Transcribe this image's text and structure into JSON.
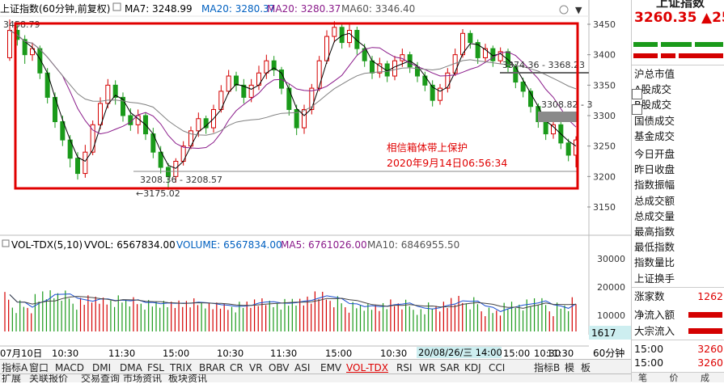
{
  "header": {
    "index_name": "上证指数(60分钟,前复权)",
    "ma7": "MA7: 3248.99",
    "ma20a": "MA20: 3280.37",
    "ma20b": "MA20: 3280.37",
    "ma60": "MA60: 3346.40",
    "arrow_down": "▼"
  },
  "price_axis": [
    "3450",
    "3400",
    "3350",
    "3300",
    "3250",
    "3200",
    "3150"
  ],
  "volume_axis": [
    "30000",
    "20000",
    "10000"
  ],
  "price_annotations": {
    "high_label": "3458.79",
    "low_label": "←3175.02",
    "range_left": "3208.36 - 3208.57",
    "range_top": "3374.36 - 3368.23",
    "range_mid": "3308.82 - 3"
  },
  "overlay": {
    "line1": "相信箱体带上保护",
    "line2": "2020年9月14日06:56:34"
  },
  "volume_header": {
    "name": "VOL-TDX(5,10)",
    "vvol": "VVOL: 6567834.00",
    "volume": "VOLUME: 6567834.00",
    "ma5": "MA5: 6761026.00",
    "ma10": "MA10: 6846955.50"
  },
  "volume_badge": "1617",
  "time_axis": {
    "labels": [
      "07月10日",
      "10:30",
      "11:30",
      "15:00",
      "10:30",
      "11:30",
      "15:00",
      "10:30",
      "11:30",
      "14:00",
      "15:00",
      "10:30",
      "11:30"
    ],
    "cursor_label": "20/08/26/三 14:00",
    "period": "60分钟"
  },
  "tabs": [
    "指标A",
    "窗口",
    "MACD",
    "DMI",
    "DMA",
    "FSL",
    "TRIX",
    "BRAR",
    "CR",
    "VR",
    "OBV",
    "ASI",
    "EMV",
    "VOL-TDX",
    "RSI",
    "WR",
    "SAR",
    "KDJ",
    "CCI",
    "指标B",
    "模",
    "板"
  ],
  "bottom_tabs": [
    "扩展",
    "关联报价",
    "交易查询",
    "市场资讯",
    "板块资讯"
  ],
  "right_panel": {
    "title": "上证指数",
    "price": "3260.35",
    "change": "▲25",
    "labels": [
      "沪总市值",
      "A股成交",
      "B股成交",
      "国债成交",
      "基金成交",
      "今日开盘",
      "昨日收盘",
      "指数振幅",
      "总成交额",
      "总成交量",
      "最高指数",
      "最低指数",
      "指数量比",
      "上证换手"
    ],
    "rise_count_label": "涨家数",
    "rise_count": "1262",
    "inflow_label": "净流入额",
    "big_inflow_label": "大宗流入",
    "ticks": [
      {
        "time": "15:00",
        "value": "3260"
      },
      {
        "time": "15:00",
        "value": "3260"
      }
    ],
    "footer": [
      "笔",
      "价",
      "成"
    ]
  },
  "colors": {
    "up": "#d40000",
    "down": "#1a9a1a",
    "ma_black": "#000000",
    "ma_purple": "#8a1a8a",
    "ma_gray": "#808080",
    "box": "#e00000",
    "overlay_text": "#e00000"
  },
  "chart_data": {
    "type": "candlestick",
    "title": "上证指数(60分钟,前复权)",
    "ylim": [
      3125,
      3475
    ],
    "candles": [
      {
        "o": 3395,
        "c": 3440,
        "h": 3458,
        "l": 3390
      },
      {
        "o": 3440,
        "c": 3425,
        "h": 3450,
        "l": 3415
      },
      {
        "o": 3425,
        "c": 3400,
        "h": 3432,
        "l": 3385
      },
      {
        "o": 3400,
        "c": 3410,
        "h": 3420,
        "l": 3390
      },
      {
        "o": 3410,
        "c": 3370,
        "h": 3415,
        "l": 3360
      },
      {
        "o": 3370,
        "c": 3330,
        "h": 3378,
        "l": 3320
      },
      {
        "o": 3330,
        "c": 3290,
        "h": 3338,
        "l": 3280
      },
      {
        "o": 3290,
        "c": 3260,
        "h": 3300,
        "l": 3250
      },
      {
        "o": 3260,
        "c": 3230,
        "h": 3268,
        "l": 3215
      },
      {
        "o": 3230,
        "c": 3205,
        "h": 3240,
        "l": 3195
      },
      {
        "o": 3205,
        "c": 3240,
        "h": 3252,
        "l": 3198
      },
      {
        "o": 3240,
        "c": 3285,
        "h": 3292,
        "l": 3235
      },
      {
        "o": 3285,
        "c": 3320,
        "h": 3330,
        "l": 3278
      },
      {
        "o": 3320,
        "c": 3350,
        "h": 3360,
        "l": 3312
      },
      {
        "o": 3350,
        "c": 3330,
        "h": 3358,
        "l": 3318
      },
      {
        "o": 3330,
        "c": 3300,
        "h": 3338,
        "l": 3290
      },
      {
        "o": 3300,
        "c": 3285,
        "h": 3312,
        "l": 3275
      },
      {
        "o": 3285,
        "c": 3300,
        "h": 3310,
        "l": 3270
      },
      {
        "o": 3300,
        "c": 3270,
        "h": 3305,
        "l": 3260
      },
      {
        "o": 3270,
        "c": 3240,
        "h": 3280,
        "l": 3230
      },
      {
        "o": 3240,
        "c": 3215,
        "h": 3250,
        "l": 3205
      },
      {
        "o": 3215,
        "c": 3200,
        "h": 3222,
        "l": 3178
      },
      {
        "o": 3200,
        "c": 3225,
        "h": 3230,
        "l": 3190
      },
      {
        "o": 3225,
        "c": 3250,
        "h": 3258,
        "l": 3218
      },
      {
        "o": 3250,
        "c": 3275,
        "h": 3282,
        "l": 3245
      },
      {
        "o": 3275,
        "c": 3295,
        "h": 3305,
        "l": 3265
      },
      {
        "o": 3295,
        "c": 3280,
        "h": 3300,
        "l": 3270
      },
      {
        "o": 3280,
        "c": 3310,
        "h": 3318,
        "l": 3272
      },
      {
        "o": 3310,
        "c": 3340,
        "h": 3350,
        "l": 3305
      },
      {
        "o": 3340,
        "c": 3365,
        "h": 3375,
        "l": 3335
      },
      {
        "o": 3365,
        "c": 3350,
        "h": 3372,
        "l": 3340
      },
      {
        "o": 3350,
        "c": 3330,
        "h": 3360,
        "l": 3320
      },
      {
        "o": 3330,
        "c": 3350,
        "h": 3360,
        "l": 3322
      },
      {
        "o": 3350,
        "c": 3370,
        "h": 3382,
        "l": 3342
      },
      {
        "o": 3370,
        "c": 3390,
        "h": 3400,
        "l": 3360
      },
      {
        "o": 3390,
        "c": 3375,
        "h": 3398,
        "l": 3365
      },
      {
        "o": 3375,
        "c": 3345,
        "h": 3380,
        "l": 3335
      },
      {
        "o": 3345,
        "c": 3310,
        "h": 3352,
        "l": 3300
      },
      {
        "o": 3310,
        "c": 3280,
        "h": 3318,
        "l": 3268
      },
      {
        "o": 3280,
        "c": 3310,
        "h": 3318,
        "l": 3270
      },
      {
        "o": 3310,
        "c": 3345,
        "h": 3352,
        "l": 3302
      },
      {
        "o": 3345,
        "c": 3390,
        "h": 3398,
        "l": 3340
      },
      {
        "o": 3390,
        "c": 3430,
        "h": 3440,
        "l": 3385
      },
      {
        "o": 3430,
        "c": 3445,
        "h": 3455,
        "l": 3420
      },
      {
        "o": 3445,
        "c": 3420,
        "h": 3452,
        "l": 3410
      },
      {
        "o": 3420,
        "c": 3440,
        "h": 3450,
        "l": 3412
      },
      {
        "o": 3440,
        "c": 3410,
        "h": 3446,
        "l": 3400
      },
      {
        "o": 3410,
        "c": 3390,
        "h": 3418,
        "l": 3380
      },
      {
        "o": 3390,
        "c": 3370,
        "h": 3398,
        "l": 3360
      },
      {
        "o": 3370,
        "c": 3385,
        "h": 3395,
        "l": 3362
      },
      {
        "o": 3385,
        "c": 3365,
        "h": 3390,
        "l": 3355
      },
      {
        "o": 3365,
        "c": 3390,
        "h": 3398,
        "l": 3358
      },
      {
        "o": 3390,
        "c": 3400,
        "h": 3410,
        "l": 3380
      },
      {
        "o": 3400,
        "c": 3380,
        "h": 3405,
        "l": 3370
      },
      {
        "o": 3380,
        "c": 3365,
        "h": 3388,
        "l": 3355
      },
      {
        "o": 3365,
        "c": 3350,
        "h": 3372,
        "l": 3340
      },
      {
        "o": 3350,
        "c": 3325,
        "h": 3358,
        "l": 3315
      },
      {
        "o": 3325,
        "c": 3345,
        "h": 3352,
        "l": 3318
      },
      {
        "o": 3345,
        "c": 3370,
        "h": 3378,
        "l": 3338
      },
      {
        "o": 3370,
        "c": 3400,
        "h": 3410,
        "l": 3365
      },
      {
        "o": 3400,
        "c": 3435,
        "h": 3442,
        "l": 3395
      },
      {
        "o": 3435,
        "c": 3420,
        "h": 3440,
        "l": 3410
      },
      {
        "o": 3420,
        "c": 3395,
        "h": 3425,
        "l": 3385
      },
      {
        "o": 3395,
        "c": 3410,
        "h": 3418,
        "l": 3388
      },
      {
        "o": 3410,
        "c": 3390,
        "h": 3415,
        "l": 3380
      },
      {
        "o": 3390,
        "c": 3405,
        "h": 3412,
        "l": 3385
      },
      {
        "o": 3405,
        "c": 3380,
        "h": 3410,
        "l": 3370
      },
      {
        "o": 3380,
        "c": 3355,
        "h": 3385,
        "l": 3345
      },
      {
        "o": 3355,
        "c": 3340,
        "h": 3362,
        "l": 3330
      },
      {
        "o": 3340,
        "c": 3315,
        "h": 3345,
        "l": 3305
      },
      {
        "o": 3315,
        "c": 3290,
        "h": 3320,
        "l": 3280
      },
      {
        "o": 3290,
        "c": 3270,
        "h": 3298,
        "l": 3260
      },
      {
        "o": 3270,
        "c": 3285,
        "h": 3292,
        "l": 3262
      },
      {
        "o": 3285,
        "c": 3255,
        "h": 3290,
        "l": 3245
      },
      {
        "o": 3255,
        "c": 3235,
        "h": 3262,
        "l": 3225
      },
      {
        "o": 3235,
        "c": 3260,
        "h": 3266,
        "l": 3215
      }
    ]
  }
}
